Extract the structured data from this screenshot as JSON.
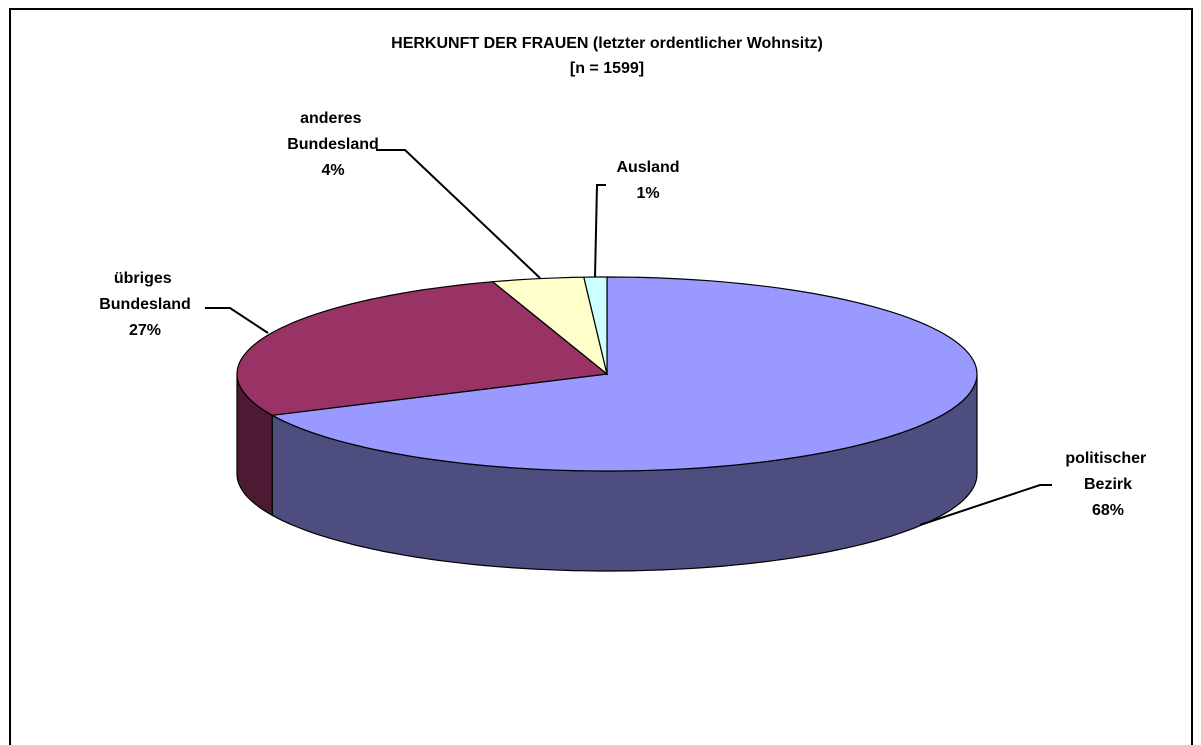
{
  "chart_data": {
    "type": "pie3d",
    "title": "HERKUNFT DER FRAUEN (letzter ordentlicher Wohnsitz)",
    "subtitle": "[n = 1599]",
    "categories": [
      "politischer Bezirk",
      "übriges Bundesland",
      "anderes Bundesland",
      "Ausland"
    ],
    "values": [
      68,
      27,
      4,
      1
    ],
    "value_labels": [
      "68%",
      "27%",
      "4%",
      "1%"
    ],
    "colors": [
      "#9999ff",
      "#993366",
      "#ffffcc",
      "#ccffff"
    ],
    "side_colors": [
      "#4d4d80",
      "#4d1a33",
      "#80805f",
      "#668080"
    ]
  }
}
